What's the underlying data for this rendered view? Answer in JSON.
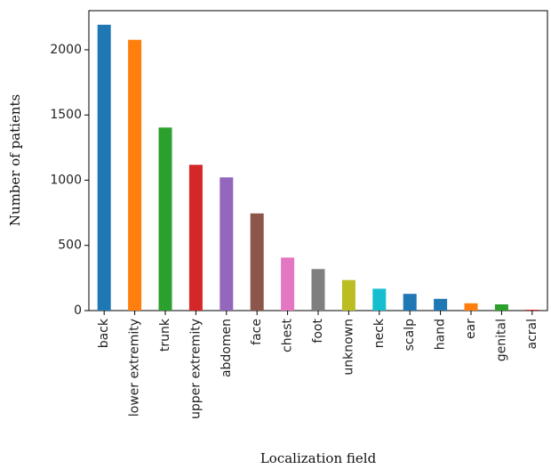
{
  "chart_data": {
    "type": "bar",
    "xlabel": "Localization field",
    "ylabel": "Number of patients",
    "categories": [
      "back",
      "lower extremity",
      "trunk",
      "upper extremity",
      "abdomen",
      "face",
      "chest",
      "foot",
      "unknown",
      "neck",
      "scalp",
      "hand",
      "ear",
      "genital",
      "acral"
    ],
    "values": [
      2192,
      2077,
      1404,
      1118,
      1022,
      745,
      407,
      319,
      234,
      168,
      128,
      90,
      56,
      48,
      7
    ],
    "colors": [
      "#1f77b4",
      "#ff7f0e",
      "#2ca02c",
      "#d62728",
      "#9467bd",
      "#8c564b",
      "#e377c2",
      "#7f7f7f",
      "#bcbd22",
      "#17becf",
      "#1f77b4",
      "#1f77b4",
      "#ff7f0e",
      "#2ca02c",
      "#d62728"
    ],
    "yticks": [
      0,
      500,
      1000,
      1500,
      2000
    ],
    "ylim": [
      0,
      2300
    ],
    "grid": false,
    "legend": "none"
  }
}
